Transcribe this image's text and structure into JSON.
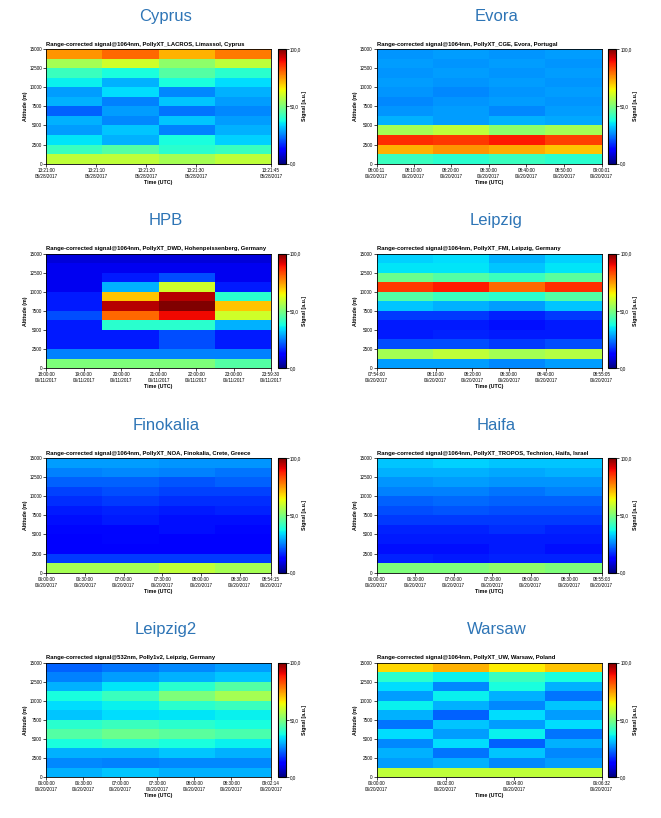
{
  "chart_data": [
    {
      "type": "heatmap",
      "title": "Cyprus",
      "subtitle": "Range-corrected signal@1064nm, PollyXT_LACROS, Limassol, Cyprus",
      "xlabel": "Time (UTC)",
      "ylabel": "Altitude (m)",
      "xlim": [
        48060,
        48105
      ],
      "xticks": [
        {
          "value": 48060,
          "label": "13:21:00\n05/28/2017"
        },
        {
          "value": 48070,
          "label": "13:21:10\n05/28/2017"
        },
        {
          "value": 48080,
          "label": "13:21:20\n05/28/2017"
        },
        {
          "value": 48090,
          "label": "13:21:30\n05/28/2017"
        },
        {
          "value": 48105,
          "label": "13:21:45\n05/28/2017"
        }
      ],
      "ylim": [
        0,
        15000
      ],
      "yticks": [
        0,
        2500,
        5000,
        7500,
        10000,
        12500,
        15000
      ],
      "cells": [
        [
          58,
          58,
          55,
          58
        ],
        [
          42,
          45,
          40,
          42
        ],
        [
          35,
          30,
          38,
          33
        ],
        [
          28,
          32,
          25,
          30
        ],
        [
          30,
          26,
          32,
          28
        ],
        [
          22,
          28,
          24,
          26
        ],
        [
          30,
          25,
          32,
          28
        ],
        [
          28,
          34,
          26,
          30
        ],
        [
          36,
          30,
          38,
          34
        ],
        [
          42,
          38,
          45,
          40
        ],
        [
          55,
          60,
          52,
          58
        ],
        [
          75,
          80,
          72,
          78
        ]
      ],
      "colorbar": {
        "label": "Signal [a.u.]",
        "range": [
          0,
          100
        ],
        "ticks": [
          {
            "value": 0,
            "label": "0,0"
          },
          {
            "value": 50,
            "label": "50,0"
          },
          {
            "value": 100,
            "label": "100,0"
          }
        ]
      }
    },
    {
      "type": "heatmap",
      "title": "Evora",
      "subtitle": "Range-corrected signal@1064nm, PollyXT_CGE, Evora, Portugal",
      "xlabel": "Time (UTC)",
      "ylabel": "Altitude (m)",
      "xlim": [
        28811,
        32401
      ],
      "xticks": [
        {
          "value": 28811,
          "label": "08:00:11\n06/20/2017"
        },
        {
          "value": 29400,
          "label": "08:10:00\n06/20/2017"
        },
        {
          "value": 30000,
          "label": "08:20:00\n06/20/2017"
        },
        {
          "value": 30600,
          "label": "08:30:00\n06/20/2017"
        },
        {
          "value": 31200,
          "label": "08:40:00\n06/20/2017"
        },
        {
          "value": 31800,
          "label": "08:50:00\n06/20/2017"
        },
        {
          "value": 32401,
          "label": "09:00:01\n06/20/2017"
        }
      ],
      "ylim": [
        0,
        15000
      ],
      "yticks": [
        0,
        2500,
        5000,
        7500,
        10000,
        12500,
        15000
      ],
      "cells": [
        [
          42,
          40,
          42,
          40
        ],
        [
          72,
          75,
          73,
          70
        ],
        [
          86,
          85,
          88,
          84
        ],
        [
          55,
          58,
          52,
          55
        ],
        [
          30,
          28,
          30,
          29
        ],
        [
          27,
          28,
          26,
          28
        ],
        [
          26,
          27,
          28,
          27
        ],
        [
          27,
          26,
          27,
          28
        ],
        [
          28,
          27,
          28,
          27
        ],
        [
          27,
          28,
          27,
          28
        ],
        [
          28,
          27,
          28,
          27
        ],
        [
          27,
          28,
          27,
          28
        ]
      ],
      "colorbar": {
        "label": "Signal [a.u.]",
        "range": [
          0,
          100
        ],
        "ticks": [
          {
            "value": 0,
            "label": "0,0"
          },
          {
            "value": 50,
            "label": "50,0"
          },
          {
            "value": 100,
            "label": "100,0"
          }
        ]
      }
    },
    {
      "type": "heatmap",
      "title": "HPB",
      "subtitle": "Range-corrected signal@1064nm, PollyXT_DWD, Hohenpeissenberg, Germany",
      "xlabel": "Time (UTC)",
      "ylabel": "Altitude (m)",
      "xlim": [
        64800,
        86370
      ],
      "xticks": [
        {
          "value": 64800,
          "label": "18:00:00\n06/11/2017"
        },
        {
          "value": 68400,
          "label": "19:00:00\n06/11/2017"
        },
        {
          "value": 72000,
          "label": "20:00:00\n06/11/2017"
        },
        {
          "value": 75600,
          "label": "21:00:00\n06/11/2017"
        },
        {
          "value": 79200,
          "label": "22:00:00\n06/11/2017"
        },
        {
          "value": 82800,
          "label": "23:00:00\n06/11/2017"
        },
        {
          "value": 86370,
          "label": "23:59:30\n06/11/2017"
        }
      ],
      "ylim": [
        0,
        15000
      ],
      "yticks": [
        0,
        2500,
        5000,
        7500,
        10000,
        12500,
        15000
      ],
      "cells": [
        [
          50,
          50,
          50,
          45
        ],
        [
          25,
          25,
          25,
          25
        ],
        [
          15,
          15,
          20,
          15
        ],
        [
          15,
          15,
          20,
          15
        ],
        [
          15,
          40,
          40,
          30
        ],
        [
          20,
          80,
          90,
          60
        ],
        [
          15,
          95,
          100,
          70
        ],
        [
          15,
          70,
          95,
          40
        ],
        [
          10,
          30,
          60,
          15
        ],
        [
          10,
          15,
          20,
          10
        ],
        [
          10,
          10,
          10,
          10
        ],
        [
          8,
          8,
          8,
          8
        ]
      ],
      "colorbar": {
        "label": "Signal [a.u.]",
        "range": [
          0,
          100
        ],
        "ticks": [
          {
            "value": 0,
            "label": "0,0"
          },
          {
            "value": 50,
            "label": "50,0"
          },
          {
            "value": 100,
            "label": "100,0"
          }
        ]
      }
    },
    {
      "type": "heatmap",
      "title": "Leipzig",
      "subtitle": "Range-corrected signal@1064nm, PollyXT_FMI, Leipzig, Germany",
      "xlabel": "Time (UTC)",
      "ylabel": "Altitude (m)",
      "xlim": [
        28440,
        32105
      ],
      "xticks": [
        {
          "value": 28440,
          "label": "07:54:00\n06/20/2017"
        },
        {
          "value": 29400,
          "label": "08:10:00\n06/20/2017"
        },
        {
          "value": 30000,
          "label": "08:20:00\n06/20/2017"
        },
        {
          "value": 30600,
          "label": "08:30:00\n06/20/2017"
        },
        {
          "value": 31200,
          "label": "08:40:00\n06/20/2017"
        },
        {
          "value": 32105,
          "label": "08:55:05\n06/20/2017"
        }
      ],
      "ylim": [
        0,
        15000
      ],
      "yticks": [
        0,
        2500,
        5000,
        7500,
        10000,
        12500,
        15000
      ],
      "cells": [
        [
          28,
          28,
          26,
          28
        ],
        [
          55,
          58,
          55,
          57
        ],
        [
          20,
          20,
          18,
          20
        ],
        [
          15,
          16,
          15,
          15
        ],
        [
          15,
          15,
          14,
          15
        ],
        [
          18,
          18,
          16,
          18
        ],
        [
          32,
          30,
          28,
          32
        ],
        [
          45,
          42,
          40,
          45
        ],
        [
          85,
          88,
          80,
          86
        ],
        [
          48,
          45,
          42,
          46
        ],
        [
          35,
          35,
          32,
          35
        ],
        [
          33,
          34,
          30,
          33
        ]
      ],
      "colorbar": {
        "label": "Signal [a.u.]",
        "range": [
          0,
          100
        ],
        "ticks": [
          {
            "value": 0,
            "label": "0,0"
          },
          {
            "value": 50,
            "label": "50,0"
          },
          {
            "value": 100,
            "label": "100,0"
          }
        ]
      }
    },
    {
      "type": "heatmap",
      "title": "Finokalia",
      "subtitle": "Range-corrected signal@1064nm, PollyXT_NOA, Finokalia, Crete, Greece",
      "xlabel": "Time (UTC)",
      "ylabel": "Altitude (m)",
      "xlim": [
        21600,
        32055
      ],
      "xticks": [
        {
          "value": 21600,
          "label": "06:00:00\n06/20/2017"
        },
        {
          "value": 23400,
          "label": "06:30:00\n06/20/2017"
        },
        {
          "value": 25200,
          "label": "07:00:00\n06/20/2017"
        },
        {
          "value": 27000,
          "label": "07:30:00\n06/20/2017"
        },
        {
          "value": 28800,
          "label": "08:00:00\n06/20/2017"
        },
        {
          "value": 30600,
          "label": "08:30:00\n06/20/2017"
        },
        {
          "value": 32055,
          "label": "08:54:15\n06/20/2017"
        }
      ],
      "ylim": [
        0,
        15000
      ],
      "yticks": [
        0,
        2500,
        5000,
        7500,
        10000,
        12500,
        15000
      ],
      "cells": [
        [
          55,
          55,
          58,
          55
        ],
        [
          18,
          18,
          18,
          18
        ],
        [
          12,
          12,
          12,
          12
        ],
        [
          12,
          13,
          12,
          12
        ],
        [
          13,
          13,
          14,
          13
        ],
        [
          14,
          15,
          14,
          14
        ],
        [
          15,
          16,
          15,
          16
        ],
        [
          17,
          18,
          17,
          17
        ],
        [
          19,
          20,
          19,
          19
        ],
        [
          22,
          22,
          21,
          22
        ],
        [
          25,
          26,
          25,
          24
        ],
        [
          28,
          28,
          27,
          27
        ]
      ],
      "colorbar": {
        "label": "Signal [a.u.]",
        "range": [
          0,
          100
        ],
        "ticks": [
          {
            "value": 0,
            "label": "0,0"
          },
          {
            "value": 50,
            "label": "50,0"
          },
          {
            "value": 100,
            "label": "100,0"
          }
        ]
      }
    },
    {
      "type": "heatmap",
      "title": "Haifa",
      "subtitle": "Range-corrected signal@1064nm, PollyXT_TROPOS, Technion, Haifa, Israel",
      "xlabel": "Time (UTC)",
      "ylabel": "Altitude (m)",
      "xlim": [
        21600,
        32103
      ],
      "xticks": [
        {
          "value": 21600,
          "label": "06:00:00\n06/20/2017"
        },
        {
          "value": 23400,
          "label": "06:30:00\n06/20/2017"
        },
        {
          "value": 25200,
          "label": "07:00:00\n06/20/2017"
        },
        {
          "value": 27000,
          "label": "07:30:00\n06/20/2017"
        },
        {
          "value": 28800,
          "label": "08:00:00\n06/20/2017"
        },
        {
          "value": 30600,
          "label": "08:30:00\n06/20/2017"
        },
        {
          "value": 32103,
          "label": "08:55:03\n06/20/2017"
        }
      ],
      "ylim": [
        0,
        15000
      ],
      "yticks": [
        0,
        2500,
        5000,
        7500,
        10000,
        12500,
        15000
      ],
      "cells": [
        [
          50,
          50,
          52,
          50
        ],
        [
          16,
          15,
          16,
          16
        ],
        [
          14,
          14,
          15,
          14
        ],
        [
          15,
          15,
          15,
          15
        ],
        [
          16,
          16,
          17,
          16
        ],
        [
          18,
          18,
          18,
          18
        ],
        [
          20,
          21,
          20,
          20
        ],
        [
          22,
          23,
          22,
          22
        ],
        [
          25,
          25,
          24,
          25
        ],
        [
          27,
          28,
          27,
          27
        ],
        [
          30,
          30,
          29,
          30
        ],
        [
          32,
          33,
          32,
          32
        ]
      ],
      "colorbar": {
        "label": "Signal [a.u.]",
        "range": [
          0,
          100
        ],
        "ticks": [
          {
            "value": 0,
            "label": "0,0"
          },
          {
            "value": 50,
            "label": "50,0"
          },
          {
            "value": 100,
            "label": "100,0"
          }
        ]
      }
    },
    {
      "type": "heatmap",
      "title": "Leipzig2",
      "subtitle": "Range-corrected signal@532nm, Polly1v2, Leipzig, Germany",
      "xlabel": "Time (UTC)",
      "ylabel": "Altitude (m)",
      "xlim": [
        21600,
        32534
      ],
      "xticks": [
        {
          "value": 21600,
          "label": "06:00:00\n06/20/2017"
        },
        {
          "value": 23400,
          "label": "06:30:00\n06/20/2017"
        },
        {
          "value": 25200,
          "label": "07:00:00\n06/20/2017"
        },
        {
          "value": 27000,
          "label": "07:30:00\n06/20/2017"
        },
        {
          "value": 28800,
          "label": "08:00:00\n06/20/2017"
        },
        {
          "value": 30600,
          "label": "08:30:00\n06/20/2017"
        },
        {
          "value": 32534,
          "label": "09:02:14\n06/20/2017"
        }
      ],
      "ylim": [
        0,
        15000
      ],
      "yticks": [
        0,
        2500,
        5000,
        7500,
        10000,
        12500,
        15000
      ],
      "cells": [
        [
          30,
          32,
          30,
          30
        ],
        [
          26,
          25,
          26,
          26
        ],
        [
          30,
          30,
          32,
          30
        ],
        [
          38,
          40,
          38,
          36
        ],
        [
          45,
          48,
          46,
          44
        ],
        [
          40,
          42,
          40,
          38
        ],
        [
          32,
          34,
          35,
          36
        ],
        [
          34,
          36,
          40,
          42
        ],
        [
          38,
          42,
          50,
          55
        ],
        [
          30,
          35,
          40,
          45
        ],
        [
          25,
          28,
          30,
          32
        ],
        [
          22,
          24,
          26,
          28
        ]
      ],
      "colorbar": {
        "label": "Signal [a.u.]",
        "range": [
          0,
          100
        ],
        "ticks": [
          {
            "value": 0,
            "label": "0,0"
          },
          {
            "value": 50,
            "label": "50,0"
          },
          {
            "value": 100,
            "label": "100,0"
          }
        ]
      }
    },
    {
      "type": "heatmap",
      "title": "Warsaw",
      "subtitle": "Range-corrected signal@1064nm, PollyXT_UW, Warsaw, Poland",
      "xlabel": "Time (UTC)",
      "ylabel": "Altitude (m)",
      "xlim": [
        21600,
        21992
      ],
      "xticks": [
        {
          "value": 21600,
          "label": "06:00:00\n06/20/2017"
        },
        {
          "value": 21720,
          "label": "06:02:00\n06/20/2017"
        },
        {
          "value": 21840,
          "label": "06:04:00\n06/20/2017"
        },
        {
          "value": 21992,
          "label": "06:06:32\n06/20/2017"
        }
      ],
      "ylim": [
        0,
        15000
      ],
      "yticks": [
        0,
        2500,
        5000,
        7500,
        10000,
        12500,
        15000
      ],
      "cells": [
        [
          58,
          58,
          58,
          58
        ],
        [
          28,
          30,
          26,
          28
        ],
        [
          30,
          24,
          32,
          26
        ],
        [
          26,
          34,
          22,
          30
        ],
        [
          34,
          28,
          36,
          24
        ],
        [
          24,
          32,
          28,
          34
        ],
        [
          30,
          22,
          34,
          28
        ],
        [
          36,
          30,
          26,
          32
        ],
        [
          28,
          36,
          30,
          24
        ],
        [
          34,
          26,
          38,
          30
        ],
        [
          40,
          36,
          42,
          38
        ],
        [
          68,
          72,
          66,
          70
        ]
      ],
      "colorbar": {
        "label": "Signal [a.u.]",
        "range": [
          0,
          100
        ],
        "ticks": [
          {
            "value": 0,
            "label": "0,0"
          },
          {
            "value": 50,
            "label": "50,0"
          },
          {
            "value": 100,
            "label": "100,0"
          }
        ]
      }
    }
  ]
}
